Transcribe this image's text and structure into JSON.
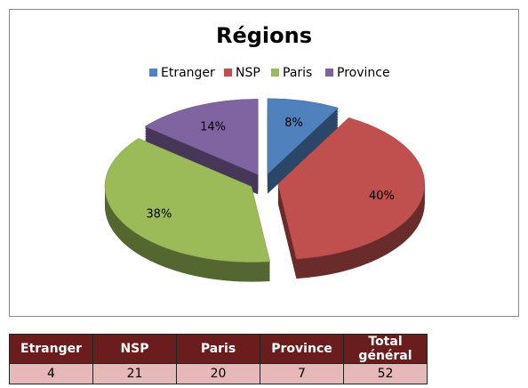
{
  "chart_data": {
    "type": "pie",
    "title": "Régions",
    "categories": [
      "Etranger",
      "NSP",
      "Paris",
      "Province"
    ],
    "values": [
      8,
      40,
      38,
      14
    ],
    "value_labels": [
      "8%",
      "40%",
      "38%",
      "14%"
    ],
    "colors": [
      "#4f81bd",
      "#c0504d",
      "#9bbb59",
      "#8064a2"
    ],
    "legend": "top"
  },
  "table": {
    "header": [
      "Etranger",
      "NSP",
      "Paris",
      "Province",
      "Total général"
    ],
    "rows": [
      [
        "4",
        "21",
        "20",
        "7",
        "52"
      ]
    ]
  }
}
